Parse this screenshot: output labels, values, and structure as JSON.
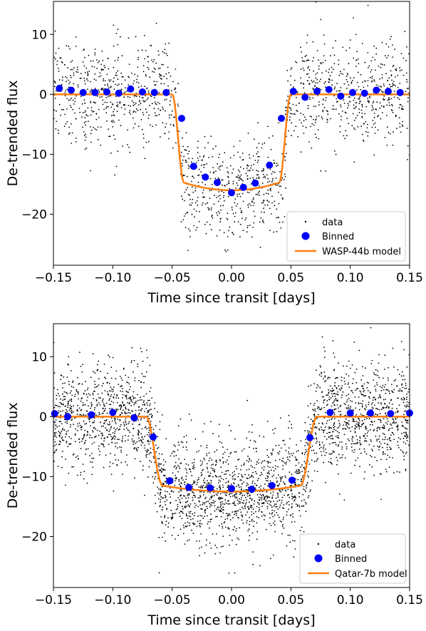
{
  "chart_data": [
    {
      "type": "scatter",
      "title": "",
      "xlabel": "Time since transit [days]",
      "ylabel": "De-trended flux",
      "xlim": [
        -0.15,
        0.15
      ],
      "ylim": [
        -28.5,
        15.5
      ],
      "xticks": [
        -0.15,
        -0.1,
        -0.05,
        0.0,
        0.05,
        0.1,
        0.15
      ],
      "xtick_labels": [
        "−0.15",
        "−0.10",
        "−0.05",
        "0.00",
        "0.05",
        "0.10",
        "0.15"
      ],
      "yticks": [
        10,
        0,
        -10,
        -20
      ],
      "ytick_labels": [
        "10",
        "0",
        "−10",
        "−20"
      ],
      "legend_position": "lower-right",
      "legend": [
        "data",
        "Binned",
        "WASP-44b model"
      ],
      "model": {
        "depth": 16,
        "t1": 0.05,
        "t2": 0.04,
        "curvature": 2.5
      },
      "data_scatter": {
        "count": 1600,
        "noise_sigma": 4.3,
        "color": "#000000"
      },
      "binned": {
        "x": [
          -0.145,
          -0.135,
          -0.125,
          -0.115,
          -0.105,
          -0.095,
          -0.085,
          -0.075,
          -0.065,
          -0.055,
          -0.042,
          -0.032,
          -0.022,
          -0.012,
          0.0,
          0.01,
          0.02,
          0.032,
          0.042,
          0.052,
          0.062,
          0.072,
          0.082,
          0.092,
          0.102,
          0.112,
          0.122,
          0.132,
          0.142
        ],
        "y": [
          1.0,
          0.7,
          0.3,
          0.3,
          0.4,
          0.2,
          0.9,
          0.4,
          0.3,
          0.3,
          -4.0,
          -12.0,
          -13.8,
          -14.7,
          -16.4,
          -15.5,
          -14.8,
          -11.8,
          -4.0,
          0.5,
          -0.5,
          0.5,
          0.8,
          -0.3,
          0.3,
          0.2,
          0.7,
          0.5,
          0.3
        ],
        "color": "#0000ff"
      },
      "model_color": "#ff7f0e"
    },
    {
      "type": "scatter",
      "title": "",
      "xlabel": "Time since transit [days]",
      "ylabel": "De-trended flux",
      "xlim": [
        -0.15,
        0.15
      ],
      "ylim": [
        -28.5,
        15.5
      ],
      "xticks": [
        -0.15,
        -0.1,
        -0.05,
        0.0,
        0.05,
        0.1,
        0.15
      ],
      "xtick_labels": [
        "−0.15",
        "−0.10",
        "−0.05",
        "0.00",
        "0.05",
        "0.10",
        "0.15"
      ],
      "yticks": [
        10,
        0,
        -10,
        -20
      ],
      "ytick_labels": [
        "10",
        "0",
        "−10",
        "−20"
      ],
      "legend_position": "lower-right",
      "legend": [
        "data",
        "Binned",
        "Qatar-7b model"
      ],
      "model": {
        "depth": 12.5,
        "t1": 0.072,
        "t2": 0.058,
        "curvature": 2.0
      },
      "data_scatter": {
        "count": 3000,
        "noise_sigma": 4.3,
        "color": "#000000"
      },
      "binned": {
        "x": [
          -0.149,
          -0.138,
          -0.118,
          -0.1,
          -0.082,
          -0.066,
          -0.052,
          -0.036,
          -0.018,
          0.0,
          0.017,
          0.034,
          0.051,
          0.066,
          0.083,
          0.1,
          0.117,
          0.134,
          0.15
        ],
        "y": [
          0.5,
          0.0,
          0.3,
          0.7,
          -0.2,
          -3.4,
          -10.7,
          -11.8,
          -11.9,
          -12.0,
          -12.1,
          -11.5,
          -10.6,
          -3.5,
          0.7,
          0.6,
          0.6,
          0.5,
          0.6
        ],
        "color": "#0000ff"
      },
      "model_color": "#ff7f0e"
    }
  ]
}
